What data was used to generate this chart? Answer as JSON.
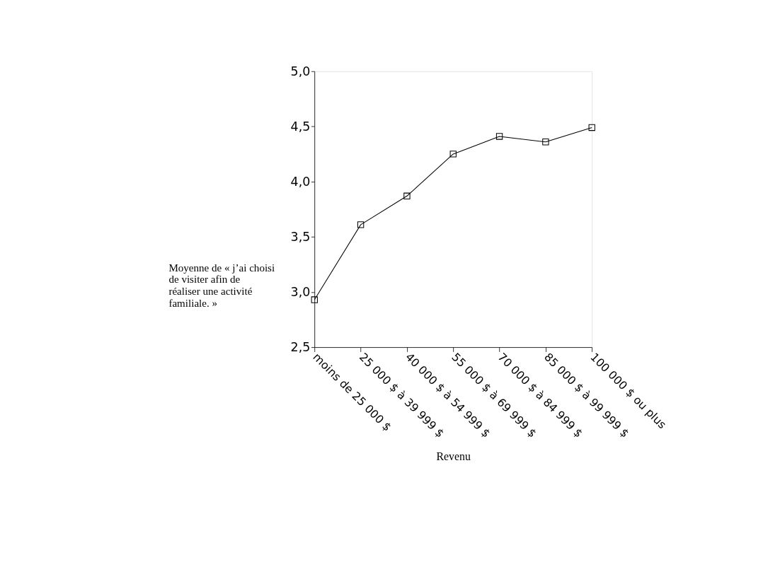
{
  "chart_data": {
    "type": "line",
    "xlabel": "Revenu",
    "ylabel": "Moyenne de « j’ai choisi de visiter afin de réaliser une activité familiale. »",
    "categories": [
      "moins de 25 000 $",
      "25 000 $ à 39 999 $",
      "40 000 $ à 54 999 $",
      "55 000 $ à 69 999 $",
      "70 000 $ à 84 999 $",
      "85 000 $ à 99 999 $",
      "100 000 $ ou plus"
    ],
    "series": [
      {
        "color": "#000000",
        "values": [
          2.93,
          3.61,
          3.87,
          4.25,
          4.41,
          4.36,
          4.49
        ]
      }
    ],
    "ylim": [
      2.5,
      5.0
    ],
    "yticks": [
      {
        "value": 2.5,
        "label": "2,5"
      },
      {
        "value": 3.0,
        "label": "3,0"
      },
      {
        "value": 3.5,
        "label": "3,5"
      },
      {
        "value": 4.0,
        "label": "4,0"
      },
      {
        "value": 4.5,
        "label": "4,5"
      },
      {
        "value": 5.0,
        "label": "5,0"
      }
    ],
    "grid": false,
    "marker": "square",
    "line_style": "solid"
  }
}
